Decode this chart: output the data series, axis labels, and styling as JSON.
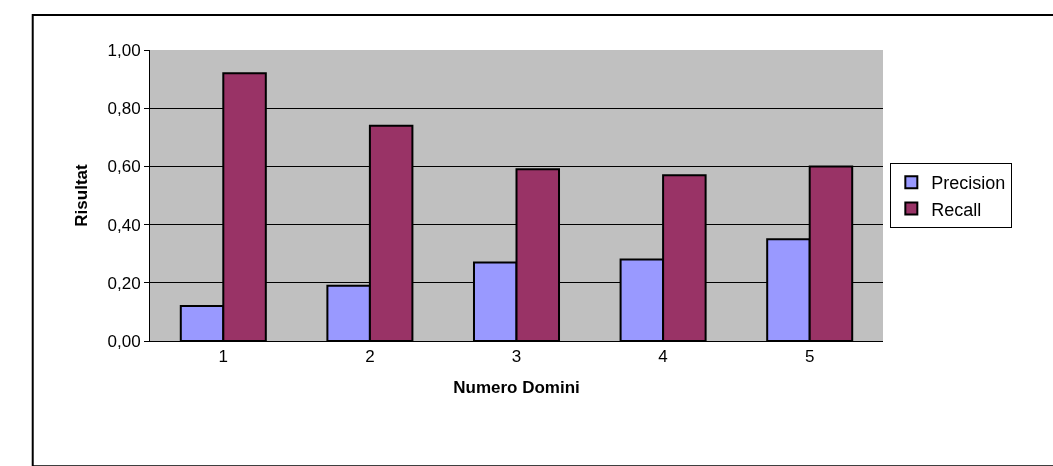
{
  "chart_data": {
    "type": "bar",
    "xlabel": "Numero Domini",
    "ylabel": "Risultat",
    "categories": [
      "1",
      "2",
      "3",
      "4",
      "5"
    ],
    "series": [
      {
        "name": "Precision",
        "color": "#9999ff",
        "values": [
          0.12,
          0.19,
          0.27,
          0.28,
          0.35
        ]
      },
      {
        "name": "Recall",
        "color": "#993366",
        "values": [
          0.92,
          0.74,
          0.59,
          0.57,
          0.6
        ]
      }
    ],
    "ylim": [
      0,
      1
    ],
    "yticks": [
      {
        "value": 0,
        "label": "0,00"
      },
      {
        "value": 0.2,
        "label": "0,20"
      },
      {
        "value": 0.4,
        "label": "0,40"
      },
      {
        "value": 0.6,
        "label": "0,60"
      },
      {
        "value": 0.8,
        "label": "0,80"
      },
      {
        "value": 1,
        "label": "1,00"
      }
    ],
    "grid": "y",
    "legend": "right"
  }
}
